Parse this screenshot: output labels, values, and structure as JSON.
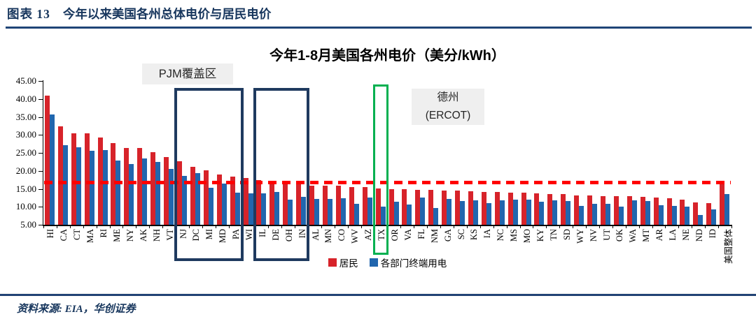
{
  "header": {
    "label": "图表 13",
    "title": "今年以来美国各州总体电价与居民电价"
  },
  "footer": {
    "source": "资料来源: EIA，华创证券"
  },
  "colors": {
    "residential": "#D7232A",
    "all_sector": "#2166AE",
    "reference_line": "#FF0000",
    "highlight_navy": "#1F3A5F",
    "highlight_green": "#00B050",
    "header_navy": "#17365D",
    "annotation_bg": "#EFEFEF"
  },
  "annotations": {
    "pjm": {
      "text": "PJM覆盖区"
    },
    "ercot": {
      "line1": "德州",
      "line2": "(ERCOT)"
    }
  },
  "chart_data": {
    "type": "bar",
    "title": "今年1-8月美国各州电价（美分/kWh）",
    "xlabel": "",
    "ylabel": "",
    "ylim": [
      5,
      45
    ],
    "ytick_step": 5,
    "ytick_decimals": 2,
    "grid": false,
    "legend_position": "bottom",
    "categories": [
      "HI",
      "CA",
      "CT",
      "MA",
      "RI",
      "ME",
      "NY",
      "AK",
      "NH",
      "VT",
      "NJ",
      "DC",
      "MI",
      "MD",
      "PA",
      "WI",
      "IL",
      "DE",
      "OH",
      "IN",
      "AL",
      "MN",
      "CO",
      "WV",
      "AZ",
      "TX",
      "OR",
      "VA",
      "FL",
      "NM",
      "GA",
      "SC",
      "KS",
      "IA",
      "NC",
      "MS",
      "MO",
      "KY",
      "TN",
      "SD",
      "WY",
      "NV",
      "UT",
      "OK",
      "WA",
      "MT",
      "AR",
      "LA",
      "NE",
      "ND",
      "ID",
      "美国整体"
    ],
    "series": [
      {
        "name": "居民",
        "color": "#D7232A",
        "values": [
          40.9,
          32.3,
          30.4,
          30.4,
          29.2,
          27.7,
          26.4,
          26.3,
          25.2,
          23.9,
          22.7,
          21.2,
          20.1,
          19.0,
          18.4,
          18.0,
          17.4,
          17.2,
          17.0,
          16.7,
          15.9,
          15.8,
          15.8,
          15.5,
          15.4,
          15.1,
          15.0,
          14.9,
          14.8,
          14.7,
          14.6,
          14.5,
          14.4,
          14.2,
          14.1,
          14.0,
          13.9,
          13.7,
          13.6,
          13.5,
          13.1,
          13.1,
          13.0,
          13.0,
          12.9,
          12.8,
          12.6,
          12.3,
          12.0,
          11.2,
          11.1,
          16.9
        ]
      },
      {
        "name": "各部门终端用电",
        "color": "#2166AE",
        "values": [
          35.7,
          27.1,
          26.6,
          25.6,
          25.8,
          22.9,
          21.8,
          23.4,
          22.4,
          20.6,
          18.6,
          19.4,
          15.2,
          16.5,
          13.9,
          13.8,
          13.7,
          14.1,
          12.0,
          12.7,
          12.2,
          12.2,
          12.4,
          10.9,
          12.6,
          10.0,
          11.5,
          10.7,
          12.6,
          9.7,
          12.1,
          11.7,
          11.8,
          11.1,
          11.8,
          11.9,
          12.0,
          11.4,
          11.8,
          11.6,
          10.2,
          10.8,
          10.9,
          10.1,
          11.8,
          11.6,
          10.4,
          10.3,
          10.1,
          7.7,
          9.2,
          13.5
        ]
      }
    ],
    "reference_line": {
      "value": 16.9,
      "color": "#FF0000",
      "style": "dashed"
    },
    "highlight_boxes": [
      {
        "from": "NJ",
        "to": "PA",
        "color": "#1F3A5F"
      },
      {
        "from": "IL",
        "to": "IN",
        "color": "#1F3A5F"
      },
      {
        "from": "TX",
        "to": "TX",
        "color": "#00B050"
      }
    ],
    "legend": [
      {
        "label": "居民",
        "color": "#D7232A"
      },
      {
        "label": "各部门终端用电",
        "color": "#2166AE"
      }
    ]
  }
}
